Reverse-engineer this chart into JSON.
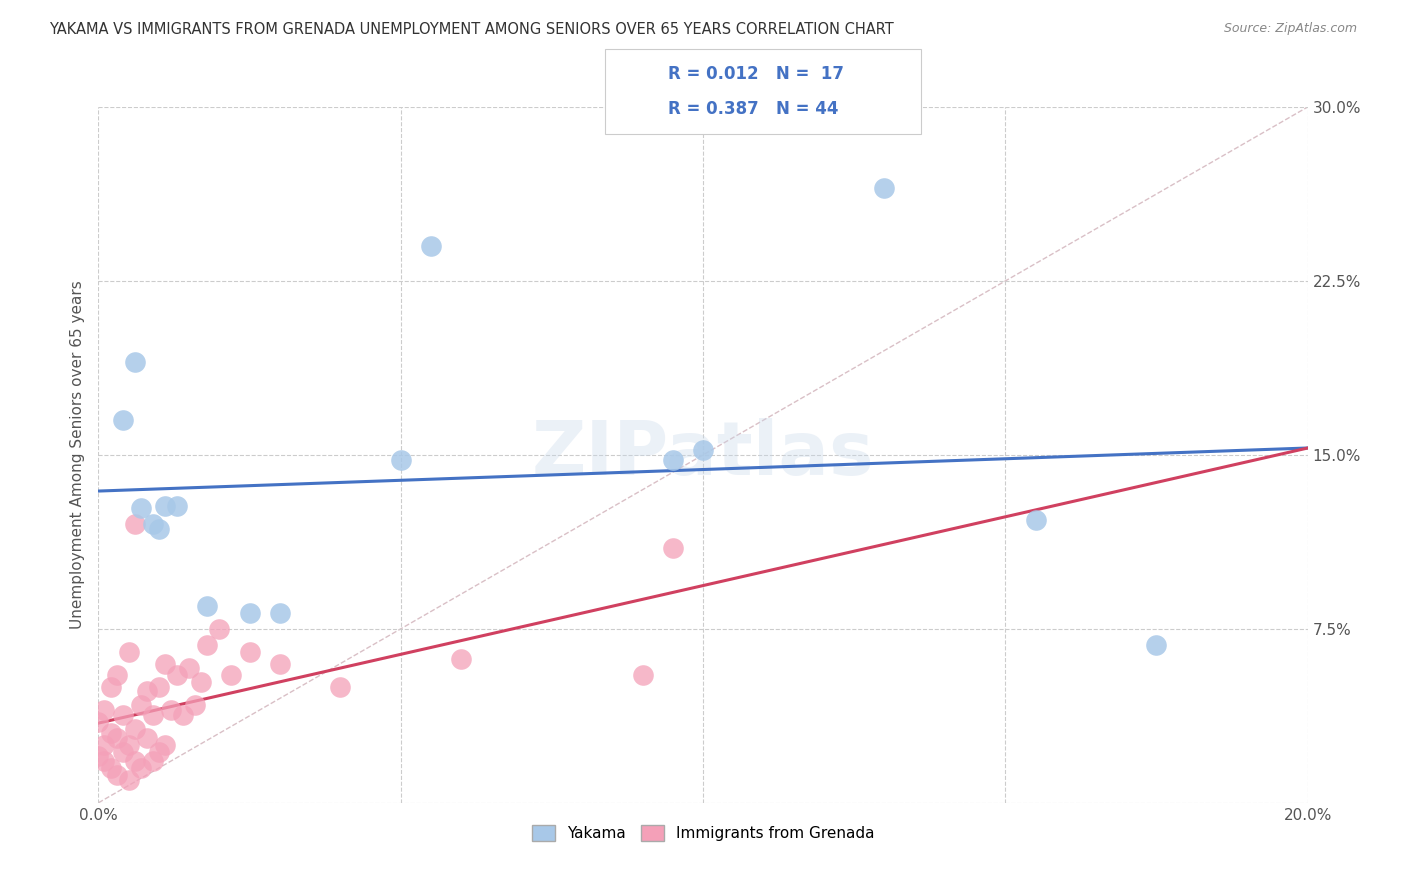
{
  "title": "YAKAMA VS IMMIGRANTS FROM GRENADA UNEMPLOYMENT AMONG SENIORS OVER 65 YEARS CORRELATION CHART",
  "source": "Source: ZipAtlas.com",
  "ylabel": "Unemployment Among Seniors over 65 years",
  "xlim": [
    0,
    0.2
  ],
  "ylim": [
    0,
    0.3
  ],
  "xtick_positions": [
    0.0,
    0.05,
    0.1,
    0.15,
    0.2
  ],
  "xtick_labels": [
    "0.0%",
    "",
    "",
    "",
    "20.0%"
  ],
  "ytick_positions": [
    0.0,
    0.075,
    0.15,
    0.225,
    0.3
  ],
  "ytick_labels": [
    "",
    "7.5%",
    "15.0%",
    "22.5%",
    "30.0%"
  ],
  "legend_labels": [
    "Yakama",
    "Immigrants from Grenada"
  ],
  "yakama_R": "0.012",
  "yakama_N": "17",
  "grenada_R": "0.387",
  "grenada_N": "44",
  "yakama_color": "#a8c8e8",
  "grenada_color": "#f4a0b8",
  "trend_color_yakama": "#4472c4",
  "trend_color_grenada": "#d04060",
  "diagonal_color": "#d0b0b8",
  "background_color": "#ffffff",
  "yakama_x": [
    0.004,
    0.006,
    0.007,
    0.009,
    0.01,
    0.011,
    0.013,
    0.018,
    0.025,
    0.03,
    0.05,
    0.055,
    0.095,
    0.1,
    0.13,
    0.155,
    0.175
  ],
  "yakama_y": [
    0.165,
    0.19,
    0.127,
    0.12,
    0.118,
    0.128,
    0.128,
    0.085,
    0.082,
    0.082,
    0.148,
    0.24,
    0.148,
    0.152,
    0.265,
    0.122,
    0.068
  ],
  "grenada_x": [
    0.0,
    0.0,
    0.001,
    0.001,
    0.001,
    0.002,
    0.002,
    0.002,
    0.003,
    0.003,
    0.003,
    0.004,
    0.004,
    0.005,
    0.005,
    0.005,
    0.006,
    0.006,
    0.006,
    0.007,
    0.007,
    0.008,
    0.008,
    0.009,
    0.009,
    0.01,
    0.01,
    0.011,
    0.011,
    0.012,
    0.013,
    0.014,
    0.015,
    0.016,
    0.017,
    0.018,
    0.02,
    0.022,
    0.025,
    0.03,
    0.04,
    0.06,
    0.09,
    0.095
  ],
  "grenada_y": [
    0.02,
    0.035,
    0.018,
    0.025,
    0.04,
    0.015,
    0.03,
    0.05,
    0.012,
    0.028,
    0.055,
    0.022,
    0.038,
    0.01,
    0.025,
    0.065,
    0.018,
    0.032,
    0.12,
    0.015,
    0.042,
    0.028,
    0.048,
    0.018,
    0.038,
    0.022,
    0.05,
    0.025,
    0.06,
    0.04,
    0.055,
    0.038,
    0.058,
    0.042,
    0.052,
    0.068,
    0.075,
    0.055,
    0.065,
    0.06,
    0.05,
    0.062,
    0.055,
    0.11
  ]
}
